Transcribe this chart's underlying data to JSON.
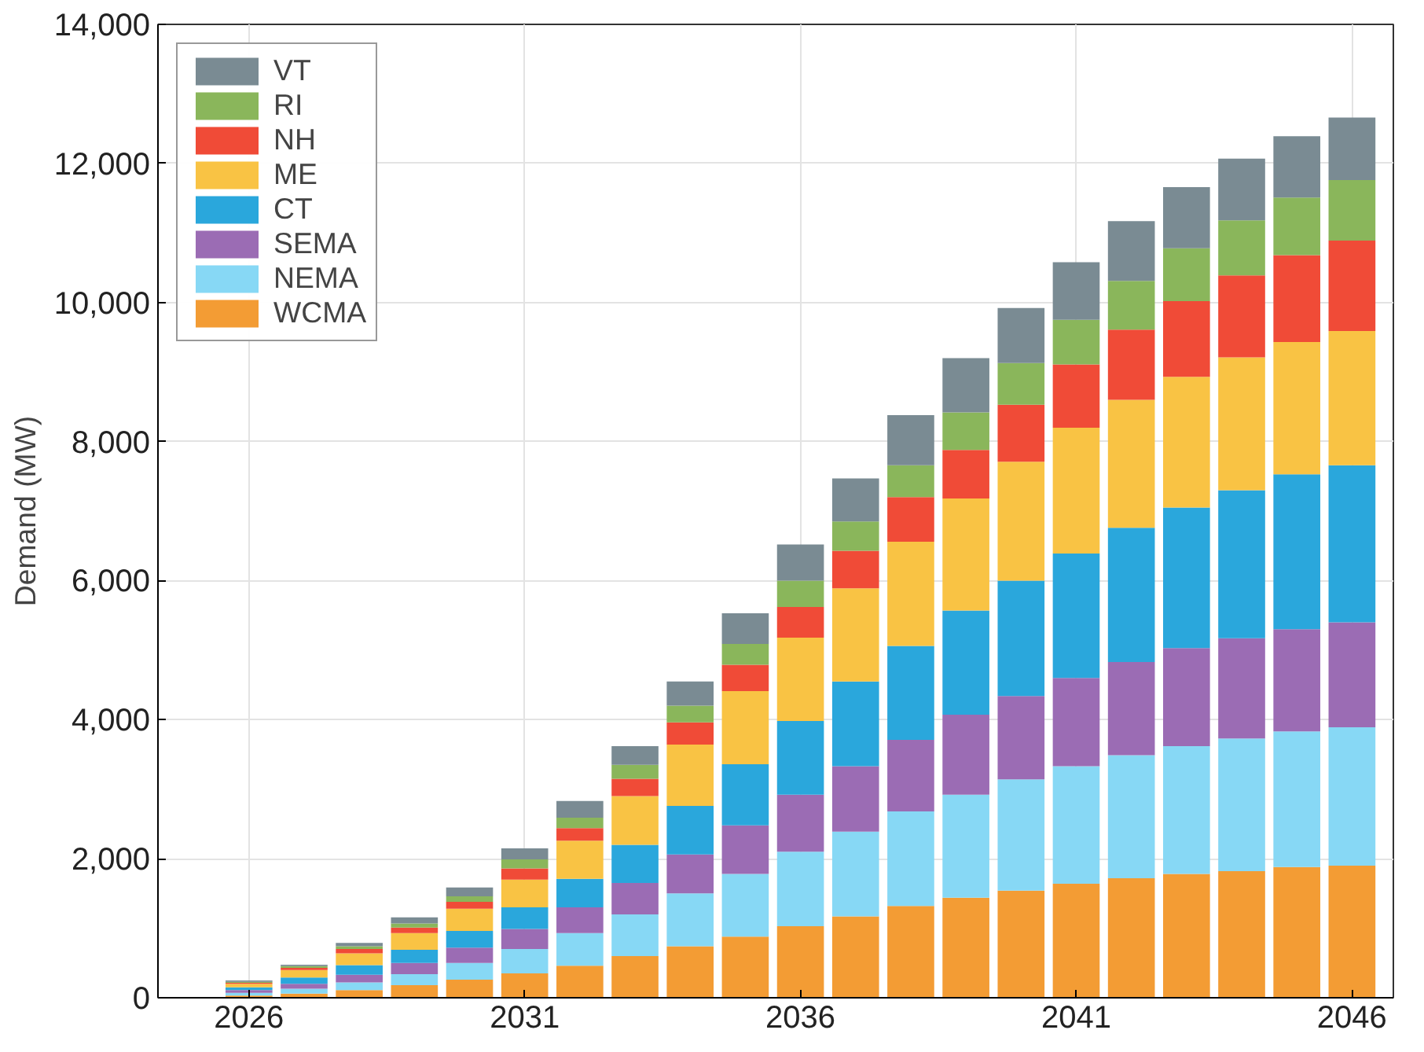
{
  "chart_data": {
    "type": "bar",
    "stacked": true,
    "ylabel": "Demand (MW)",
    "x": [
      2026,
      2027,
      2028,
      2029,
      2030,
      2031,
      2032,
      2033,
      2034,
      2035,
      2036,
      2037,
      2038,
      2039,
      2040,
      2041,
      2042,
      2043,
      2044,
      2045,
      2046
    ],
    "xlim": [
      2024.35,
      2046.75
    ],
    "xticks": [
      2026,
      2031,
      2036,
      2041,
      2046
    ],
    "ylim": [
      0,
      14000
    ],
    "yticks": [
      {
        "value": 0,
        "label": "0"
      },
      {
        "value": 2000,
        "label": "2,000"
      },
      {
        "value": 4000,
        "label": "4,000"
      },
      {
        "value": 6000,
        "label": "6,000"
      },
      {
        "value": 8000,
        "label": "8,000"
      },
      {
        "value": 10000,
        "label": "10,000"
      },
      {
        "value": 12000,
        "label": "12,000"
      },
      {
        "value": 14000,
        "label": "14,000"
      }
    ],
    "grid": true,
    "legend": "top left",
    "series": [
      {
        "name": "WCMA",
        "color": "#f39c34",
        "values": [
          30,
          60,
          110,
          180,
          260,
          350,
          460,
          600,
          740,
          880,
          1030,
          1170,
          1320,
          1440,
          1540,
          1640,
          1720,
          1780,
          1820,
          1880,
          1900
        ]
      },
      {
        "name": "NEMA",
        "color": "#87d8f5",
        "values": [
          40,
          70,
          110,
          160,
          240,
          350,
          470,
          600,
          760,
          900,
          1070,
          1220,
          1360,
          1480,
          1600,
          1690,
          1770,
          1840,
          1910,
          1950,
          1990
        ]
      },
      {
        "name": "SEMA",
        "color": "#9b6cb4",
        "values": [
          40,
          70,
          110,
          160,
          220,
          290,
          370,
          450,
          560,
          700,
          820,
          940,
          1030,
          1150,
          1200,
          1270,
          1340,
          1410,
          1440,
          1470,
          1510
        ]
      },
      {
        "name": "CT",
        "color": "#2aa7dc",
        "values": [
          40,
          90,
          140,
          190,
          240,
          310,
          410,
          550,
          700,
          880,
          1060,
          1220,
          1350,
          1500,
          1660,
          1790,
          1930,
          2020,
          2130,
          2230,
          2260
        ]
      },
      {
        "name": "ME",
        "color": "#f9c344",
        "values": [
          50,
          110,
          170,
          240,
          320,
          400,
          550,
          700,
          880,
          1050,
          1200,
          1340,
          1500,
          1610,
          1710,
          1810,
          1840,
          1880,
          1910,
          1900,
          1930
        ]
      },
      {
        "name": "NH",
        "color": "#f04b37",
        "values": [
          15,
          30,
          60,
          80,
          100,
          160,
          180,
          250,
          320,
          380,
          440,
          540,
          640,
          700,
          820,
          910,
          1010,
          1090,
          1180,
          1250,
          1300
        ]
      },
      {
        "name": "RI",
        "color": "#8ab65b",
        "values": [
          15,
          25,
          40,
          60,
          80,
          130,
          150,
          200,
          240,
          300,
          380,
          420,
          460,
          540,
          600,
          640,
          700,
          760,
          790,
          830,
          870
        ]
      },
      {
        "name": "VT",
        "color": "#7a8b93",
        "values": [
          20,
          20,
          50,
          85,
          125,
          160,
          240,
          270,
          350,
          440,
          520,
          620,
          720,
          780,
          790,
          830,
          860,
          880,
          890,
          880,
          900
        ]
      }
    ]
  }
}
